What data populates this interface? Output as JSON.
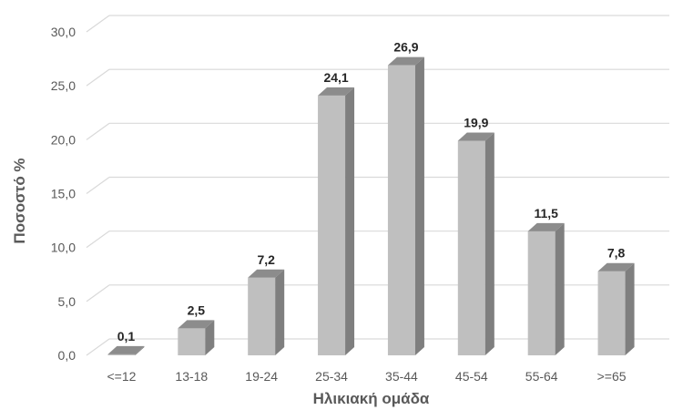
{
  "chart_data": {
    "type": "bar",
    "title": "",
    "xlabel": "Ηλικιακή ομάδα",
    "ylabel": "Ποσοστό %",
    "categories": [
      "<=12",
      "13-18",
      "19-24",
      "25-34",
      "35-44",
      "45-54",
      "55-64",
      ">=65"
    ],
    "values": [
      0.1,
      2.5,
      7.2,
      24.1,
      26.9,
      19.9,
      11.5,
      7.8
    ],
    "value_labels": [
      "0,1",
      "2,5",
      "7,2",
      "24,1",
      "26,9",
      "19,9",
      "11,5",
      "7,8"
    ],
    "ylim": [
      0,
      30
    ],
    "yticks": [
      0,
      5,
      10,
      15,
      20,
      25,
      30
    ],
    "ytick_labels": [
      "0,0",
      "5,0",
      "10,0",
      "15,0",
      "20,0",
      "25,0",
      "30,0"
    ],
    "grid": true,
    "legend": "none",
    "style": "3d",
    "colors": {
      "bar_front": "#bfbfbf",
      "bar_side": "#7f7f7f",
      "bar_top": "#8c8c8c",
      "grid": "#d9d9d9"
    }
  }
}
